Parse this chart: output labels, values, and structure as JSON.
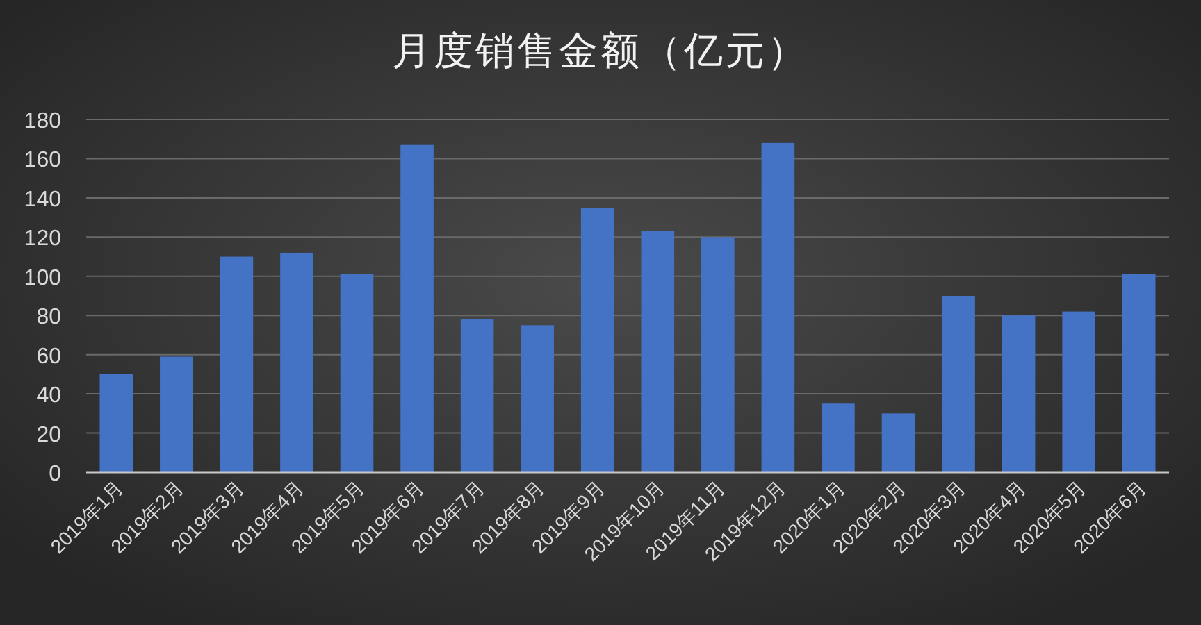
{
  "chart_data": {
    "type": "bar",
    "title": "月度销售金额（亿元）",
    "categories": [
      "2019年1月",
      "2019年2月",
      "2019年3月",
      "2019年4月",
      "2019年5月",
      "2019年6月",
      "2019年7月",
      "2019年8月",
      "2019年9月",
      "2019年10月",
      "2019年11月",
      "2019年12月",
      "2020年1月",
      "2020年2月",
      "2020年3月",
      "2020年4月",
      "2020年5月",
      "2020年6月"
    ],
    "values": [
      50,
      59,
      110,
      112,
      101,
      167,
      78,
      75,
      135,
      123,
      120,
      168,
      35,
      30,
      90,
      80,
      82,
      101
    ],
    "color": "#4472c4",
    "ylim": [
      0,
      180
    ],
    "yticks": [
      0,
      20,
      40,
      60,
      80,
      100,
      120,
      140,
      160,
      180
    ],
    "grid": "y"
  }
}
